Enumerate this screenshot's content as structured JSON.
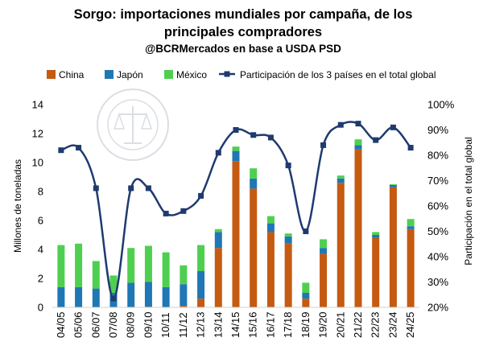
{
  "chart_data": {
    "type": "bar",
    "title_line1": "Sorgo: importaciones mundiales por campaña, de los",
    "title_line2": "principales compradores",
    "subtitle": "@BCRMercados en base a USDA PSD",
    "ylabel": "Millones de toneladas",
    "y2label": "Participación en el total global",
    "ylim": [
      0,
      14
    ],
    "yticks": [
      0,
      2,
      4,
      6,
      8,
      10,
      12,
      14
    ],
    "y2lim": [
      20,
      100
    ],
    "y2ticks": [
      "20%",
      "30%",
      "40%",
      "50%",
      "60%",
      "70%",
      "80%",
      "90%",
      "100%"
    ],
    "y2tick_values": [
      20,
      30,
      40,
      50,
      60,
      70,
      80,
      90,
      100
    ],
    "categories": [
      "04/05",
      "05/06",
      "06/07",
      "07/08",
      "08/09",
      "09/10",
      "10/11",
      "11/12",
      "12/13",
      "13/14",
      "14/15",
      "15/16",
      "16/17",
      "17/18",
      "18/19",
      "19/20",
      "20/21",
      "21/22",
      "22/23",
      "23/24",
      "24/25"
    ],
    "series": [
      {
        "name": "China",
        "color": "#c55a11",
        "values": [
          0,
          0,
          0,
          0,
          0,
          0.05,
          0,
          0.1,
          0.6,
          4.1,
          10.1,
          8.2,
          5.2,
          4.4,
          0.6,
          3.7,
          8.6,
          10.9,
          4.8,
          8.3,
          5.4
        ]
      },
      {
        "name": "Japón",
        "color": "#1f77b4",
        "values": [
          1.4,
          1.4,
          1.3,
          1.0,
          1.7,
          1.7,
          1.4,
          1.5,
          1.9,
          1.1,
          0.7,
          0.7,
          0.6,
          0.5,
          0.4,
          0.4,
          0.3,
          0.3,
          0.2,
          0.15,
          0.2
        ]
      },
      {
        "name": "México",
        "color": "#4fcf4f",
        "values": [
          2.9,
          3.0,
          1.9,
          1.2,
          2.4,
          2.5,
          2.4,
          1.3,
          1.8,
          0.2,
          0.3,
          0.7,
          0.5,
          0.2,
          0.7,
          0.6,
          0.2,
          0.4,
          0.2,
          0.05,
          0.5
        ]
      },
      {
        "name": "Participación de los 3 países en el total global",
        "color": "#1f3a6e",
        "axis": "right",
        "values": [
          82,
          83,
          67,
          23.5,
          67,
          67,
          57,
          58,
          64,
          81,
          90,
          88,
          87,
          76,
          50,
          84,
          92,
          92.5,
          86,
          91,
          83
        ]
      }
    ]
  }
}
